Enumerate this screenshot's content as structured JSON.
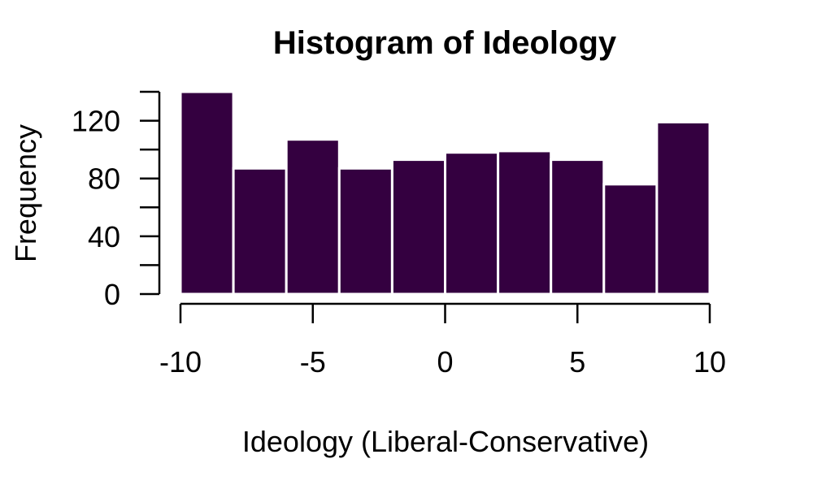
{
  "chart_data": {
    "type": "histogram",
    "title": "Histogram of Ideology",
    "xlabel": "Ideology (Liberal-Conservative)",
    "ylabel": "Frequency",
    "bin_edges": [
      -10,
      -8,
      -6,
      -4,
      -2,
      0,
      2,
      4,
      6,
      8,
      10
    ],
    "values": [
      140,
      87,
      107,
      87,
      93,
      98,
      99,
      93,
      76,
      119
    ],
    "xlim": [
      -10,
      10
    ],
    "ylim": [
      0,
      140
    ],
    "x_ticks": [
      -10,
      -5,
      0,
      5,
      10
    ],
    "x_tick_labels": [
      "-10",
      "-5",
      "0",
      "5",
      "10"
    ],
    "y_ticks": [
      0,
      20,
      40,
      60,
      80,
      100,
      120,
      140
    ],
    "y_tick_labels": [
      "0",
      "",
      "40",
      "",
      "80",
      "",
      "120",
      ""
    ],
    "grid": false,
    "legend": "none",
    "bar_color": "#340040",
    "bar_border_color": "#ffffff"
  }
}
